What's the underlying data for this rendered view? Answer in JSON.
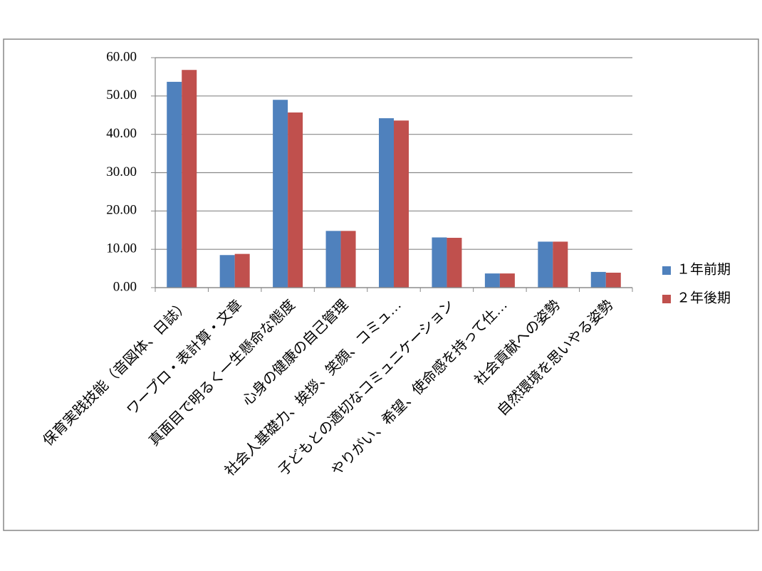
{
  "chart_data": {
    "type": "bar",
    "categories": [
      "保育実践技能（音図体、日誌）",
      "ワープロ・表計算・文章",
      "真面目で明るく一生懸命な態度",
      "心身の健康の自己管理",
      "社会人基礎力、挨拶、笑顔、コミュ…",
      "子どもとの適切なコミュニケーション",
      "やりがい、希望、使命感を持って仕…",
      "社会貢献への姿勢",
      "自然環境を思いやる姿勢"
    ],
    "series": [
      {
        "name": "１年前期",
        "color": "#4f81bd",
        "values": [
          53.7,
          8.5,
          49.0,
          14.8,
          44.2,
          13.1,
          3.7,
          12.0,
          4.1
        ]
      },
      {
        "name": "２年後期",
        "color": "#c0504d",
        "values": [
          56.8,
          8.8,
          45.7,
          14.8,
          43.6,
          13.0,
          3.7,
          12.0,
          3.9
        ]
      }
    ],
    "ylim": [
      0,
      60
    ],
    "yticks": [
      {
        "value": 0,
        "label": "0.00"
      },
      {
        "value": 10,
        "label": "10.00"
      },
      {
        "value": 20,
        "label": "20.00"
      },
      {
        "value": 30,
        "label": "30.00"
      },
      {
        "value": 40,
        "label": "40.00"
      },
      {
        "value": 50,
        "label": "50.00"
      },
      {
        "value": 60,
        "label": "60.00"
      }
    ],
    "grid": true,
    "legend": "right"
  }
}
